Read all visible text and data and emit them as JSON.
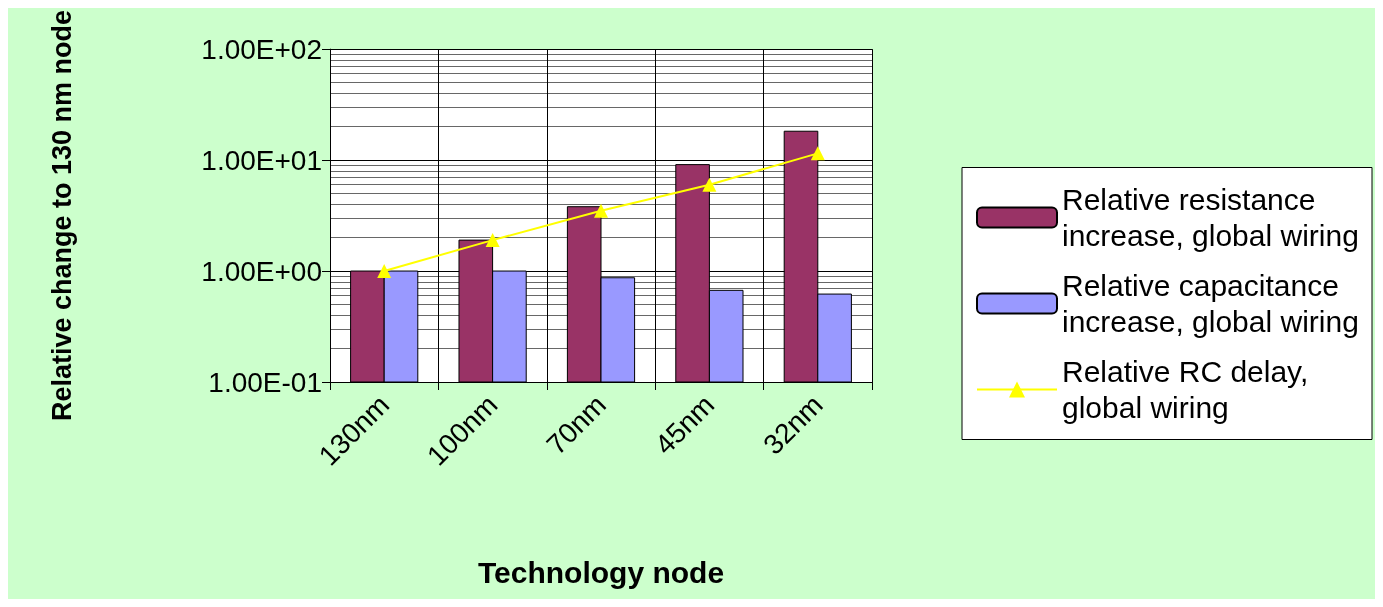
{
  "chart_data": {
    "type": "bar",
    "xlabel": "Technology node",
    "ylabel": "Relative change to 130 nm node",
    "categories": [
      "130nm",
      "100nm",
      "70nm",
      "45nm",
      "32nm"
    ],
    "series": [
      {
        "name": "Relative resistance increase, global wiring",
        "color": "#993366",
        "values": [
          1.0,
          1.9,
          3.8,
          9.1,
          18.2
        ]
      },
      {
        "name": "Relative capacitance increase, global wiring",
        "color": "#9999ff",
        "values": [
          1.0,
          1.0,
          0.87,
          0.67,
          0.62
        ]
      },
      {
        "name": "Relative RC delay, global wiring",
        "type": "line",
        "color": "#ffff00",
        "marker": "triangle",
        "values": [
          1.0,
          1.9,
          3.5,
          6.0,
          11.5
        ]
      }
    ],
    "log": "y",
    "ylim": [
      0.1,
      100
    ],
    "yticks": [
      {
        "value": 0.1,
        "label": "1.00E-01"
      },
      {
        "value": 1,
        "label": "1.00E+00"
      },
      {
        "value": 10,
        "label": "1.00E+01"
      },
      {
        "value": 100,
        "label": "1.00E+02"
      }
    ],
    "grid": true,
    "legend": "right"
  }
}
